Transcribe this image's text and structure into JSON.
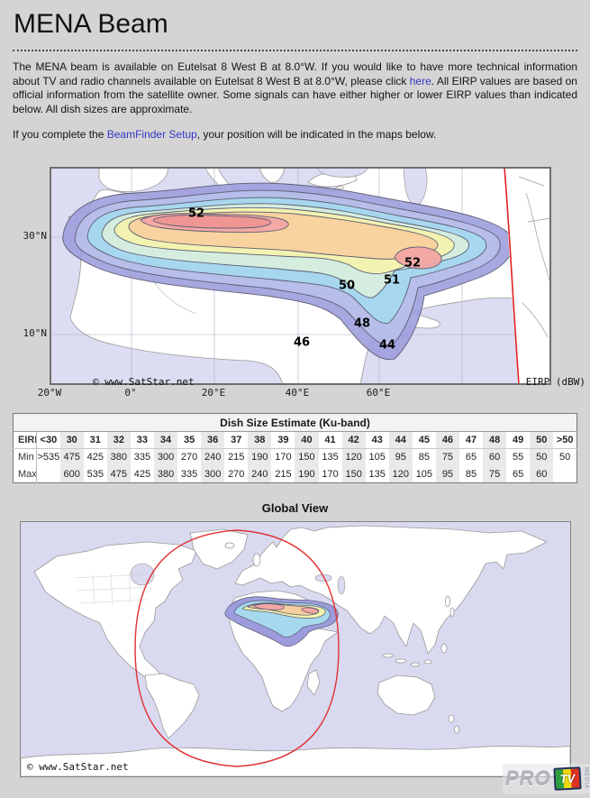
{
  "page": {
    "title": "MENA Beam"
  },
  "intro": {
    "p1_a": "The MENA beam is available on Eutelsat 8 West B at 8.0°W. If you would like to have more technical information about TV and radio channels available on Eutelsat 8 West B at 8.0°W, please click ",
    "p1_link": "here",
    "p1_b": ". All EIRP values are based on official information from the satellite owner. Some signals can have either higher or lower EIRP values than indicated below. All dish sizes are approximate.",
    "p2_a": "If you complete the ",
    "p2_link": "BeamFinder Setup",
    "p2_b": ", your position will be indicated in the maps below."
  },
  "beam_map": {
    "copyright": "© www.SatStar.net",
    "eirp_units": "EIRP (dBW)",
    "lat_labels": [
      "30°N",
      "10°N"
    ],
    "lon_labels": [
      "20°W",
      "0°",
      "20°E",
      "40°E",
      "60°E"
    ],
    "contour_labels": [
      "52",
      "52",
      "51",
      "50",
      "48",
      "46",
      "44"
    ]
  },
  "dish_table": {
    "title": "Dish Size Estimate (Ku-band)",
    "row_labels": [
      "EIRP (dBW)",
      "Min (cm)",
      "Max (cm)"
    ],
    "eirp": [
      "<30",
      "30",
      "31",
      "32",
      "33",
      "34",
      "35",
      "36",
      "37",
      "38",
      "39",
      "40",
      "41",
      "42",
      "43",
      "44",
      "45",
      "46",
      "47",
      "48",
      "49",
      "50",
      ">50"
    ],
    "min_cm": [
      ">535",
      "475",
      "425",
      "380",
      "335",
      "300",
      "270",
      "240",
      "215",
      "190",
      "170",
      "150",
      "135",
      "120",
      "105",
      "95",
      "85",
      "75",
      "65",
      "60",
      "55",
      "50",
      "50"
    ],
    "max_cm": [
      "",
      "600",
      "535",
      "475",
      "425",
      "380",
      "335",
      "300",
      "270",
      "240",
      "215",
      "190",
      "170",
      "150",
      "135",
      "120",
      "105",
      "95",
      "85",
      "75",
      "65",
      "60",
      ""
    ]
  },
  "global_view": {
    "title": "Global View",
    "copyright": "© www.SatStar.net"
  },
  "logo": {
    "pro": "PRO",
    "tv": "TV",
    "side": "MEDIA"
  },
  "colors": {
    "page_bg": "#d4d4d4",
    "link": "#3536c8",
    "ocean": "#dcdcf2",
    "band_44": "#9c9cdc",
    "band_46": "#b7c0ea",
    "band_48": "#a6d9ee",
    "band_50": "#d8efdc",
    "band_51": "#f4f3ae",
    "band_52_ring": "#f8d09e",
    "band_52_core": "#f3a7a4",
    "band_peak": "#ee9595",
    "visibility_line": "#dd2222"
  }
}
